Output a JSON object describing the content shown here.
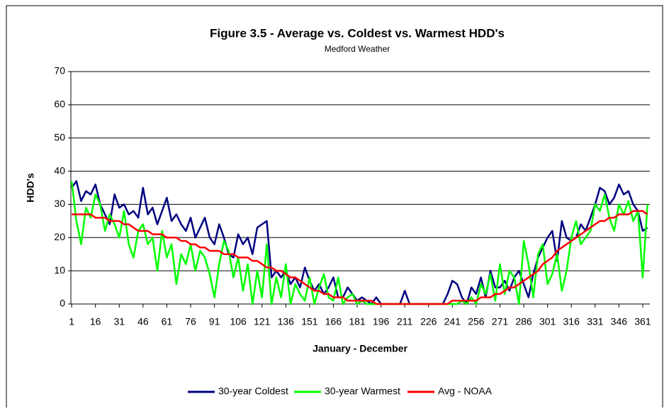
{
  "chart_data": {
    "type": "line",
    "title": "Figure 3.5 - Average vs. Coldest vs. Warmest HDD's",
    "subtitle": "Medford Weather",
    "x_label": "January - December",
    "y_label": "HDD's",
    "x": [
      1,
      4,
      7,
      10,
      13,
      16,
      19,
      22,
      25,
      28,
      31,
      34,
      37,
      40,
      43,
      46,
      49,
      52,
      55,
      58,
      61,
      64,
      67,
      70,
      73,
      76,
      79,
      82,
      85,
      88,
      91,
      94,
      97,
      100,
      103,
      106,
      109,
      112,
      115,
      118,
      121,
      124,
      127,
      130,
      133,
      136,
      139,
      142,
      145,
      148,
      151,
      154,
      157,
      160,
      163,
      166,
      169,
      172,
      175,
      178,
      181,
      184,
      187,
      190,
      193,
      196,
      199,
      202,
      205,
      208,
      211,
      214,
      217,
      220,
      223,
      226,
      229,
      232,
      235,
      238,
      241,
      244,
      247,
      250,
      253,
      256,
      259,
      262,
      265,
      268,
      271,
      274,
      277,
      280,
      283,
      286,
      289,
      292,
      295,
      298,
      301,
      304,
      307,
      310,
      313,
      316,
      319,
      322,
      325,
      328,
      331,
      334,
      337,
      340,
      343,
      346,
      349,
      352,
      355,
      358,
      361,
      364
    ],
    "series": [
      {
        "name": "30-year Coldest",
        "color": "#000080",
        "values": [
          35,
          37,
          31,
          34,
          33,
          36,
          30,
          27,
          24,
          33,
          29,
          30,
          27,
          28,
          26,
          35,
          27,
          29,
          24,
          28,
          32,
          25,
          27,
          24,
          22,
          26,
          20,
          23,
          26,
          20,
          18,
          24,
          20,
          15,
          14,
          21,
          18,
          20,
          15,
          23,
          24,
          25,
          8,
          10,
          8,
          10,
          6,
          8,
          5,
          11,
          7,
          4,
          6,
          3,
          5,
          8,
          2,
          2,
          5,
          3,
          1,
          2,
          1,
          0,
          2,
          0,
          0,
          0,
          0,
          0,
          4,
          0,
          0,
          0,
          0,
          0,
          0,
          0,
          0,
          3,
          7,
          6,
          2,
          0,
          5,
          3,
          8,
          2,
          10,
          5,
          5,
          7,
          4,
          8,
          10,
          6,
          2,
          9,
          14,
          17,
          20,
          22,
          13,
          25,
          20,
          19,
          20,
          24,
          22,
          26,
          30,
          35,
          34,
          30,
          32,
          36,
          33,
          34,
          30,
          28,
          22,
          23
        ]
      },
      {
        "name": "30-year Warmest",
        "color": "#00ff00",
        "values": [
          37,
          25,
          18,
          29,
          26,
          33,
          30,
          22,
          27,
          24,
          20,
          28,
          18,
          14,
          22,
          24,
          18,
          20,
          10,
          22,
          14,
          18,
          6,
          15,
          12,
          18,
          10,
          16,
          14,
          9,
          2,
          12,
          19,
          16,
          8,
          14,
          4,
          12,
          0,
          10,
          2,
          18,
          0,
          8,
          2,
          12,
          0,
          6,
          3,
          1,
          8,
          0,
          5,
          9,
          2,
          1,
          8,
          0,
          2,
          3,
          0,
          1,
          0,
          0,
          0,
          0,
          0,
          0,
          0,
          0,
          0,
          0,
          0,
          0,
          0,
          0,
          0,
          0,
          0,
          0,
          0,
          0,
          1,
          0,
          2,
          0,
          6,
          3,
          9,
          1,
          12,
          3,
          10,
          8,
          0,
          19,
          12,
          2,
          15,
          18,
          6,
          9,
          15,
          4,
          10,
          20,
          25,
          18,
          20,
          22,
          30,
          28,
          33,
          26,
          22,
          30,
          27,
          31,
          25,
          28,
          8,
          30
        ]
      },
      {
        "name": "Avg - NOAA",
        "color": "#ff0000",
        "values": [
          27,
          27,
          27,
          27,
          27,
          26,
          26,
          26,
          25,
          25,
          25,
          24,
          24,
          23,
          22,
          22,
          22,
          21,
          21,
          21,
          20,
          20,
          20,
          19,
          19,
          18,
          18,
          17,
          17,
          16,
          16,
          16,
          15,
          15,
          15,
          14,
          14,
          14,
          13,
          13,
          12,
          11,
          11,
          10,
          10,
          9,
          8,
          8,
          7,
          6,
          5,
          4,
          4,
          3,
          3,
          2,
          2,
          2,
          1,
          1,
          1,
          1,
          1,
          1,
          0,
          0,
          0,
          0,
          0,
          0,
          0,
          0,
          0,
          0,
          0,
          0,
          0,
          0,
          0,
          0,
          1,
          1,
          1,
          1,
          1,
          1,
          2,
          2,
          2,
          3,
          3,
          4,
          5,
          5,
          6,
          7,
          8,
          9,
          10,
          12,
          13,
          14,
          16,
          17,
          18,
          19,
          20,
          21,
          22,
          23,
          24,
          25,
          25,
          26,
          26,
          27,
          27,
          27,
          28,
          28,
          28,
          27
        ]
      }
    ],
    "xlim": [
      0.5,
      365.5
    ],
    "xticks": [
      1,
      16,
      31,
      46,
      61,
      76,
      91,
      106,
      121,
      136,
      151,
      166,
      181,
      196,
      211,
      226,
      241,
      256,
      271,
      286,
      301,
      316,
      331,
      346,
      361
    ],
    "ylim": [
      0,
      70
    ],
    "yticks": [
      0,
      10,
      20,
      30,
      40,
      50,
      60,
      70
    ],
    "grid": true,
    "legend": "bottom"
  }
}
